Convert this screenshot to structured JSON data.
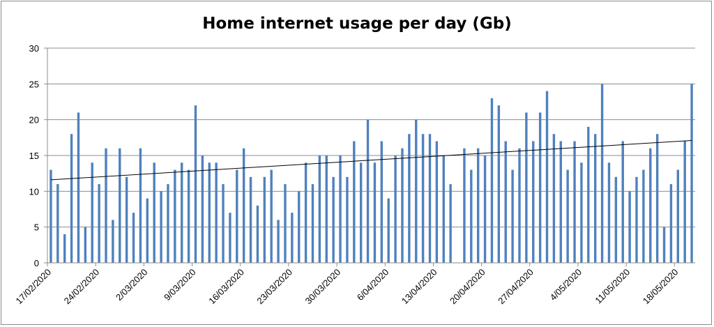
{
  "chart_data": {
    "type": "bar",
    "title": "Home internet usage per day (Gb)",
    "xlabel": "",
    "ylabel": "",
    "ylim": [
      0,
      30
    ],
    "y_ticks": [
      "0",
      "5",
      "10",
      "15",
      "20",
      "25",
      "30"
    ],
    "start_date": "17/02/2020",
    "x_tick_labels": [
      "17/02/2020",
      "24/02/2020",
      "2/03/2020",
      "9/03/2020",
      "16/03/2020",
      "23/03/2020",
      "30/03/2020",
      "6/04/2020",
      "13/04/2020",
      "20/04/2020",
      "27/04/2020",
      "4/05/2020",
      "11/05/2020",
      "18/05/2020"
    ],
    "grid": true,
    "legend": "none",
    "bar_color": "#4f81bd",
    "trendline": {
      "type": "linear",
      "start": 11.6,
      "end": 17.1,
      "color": "#000000"
    },
    "values": [
      13,
      11,
      4,
      18,
      21,
      5,
      14,
      11,
      16,
      6,
      16,
      12,
      7,
      16,
      9,
      14,
      10,
      11,
      13,
      14,
      13,
      22,
      15,
      14,
      14,
      11,
      7,
      13,
      16,
      12,
      8,
      12,
      13,
      6,
      11,
      7,
      10,
      14,
      11,
      15,
      15,
      12,
      15,
      12,
      17,
      14,
      20,
      14,
      17,
      9,
      15,
      16,
      18,
      20,
      18,
      18,
      17,
      15,
      11,
      0,
      16,
      13,
      16,
      15,
      23,
      22,
      17,
      13,
      16,
      21,
      17,
      21,
      24,
      18,
      17,
      13,
      17,
      14,
      19,
      18,
      25,
      14,
      12,
      17,
      10,
      12,
      13,
      16,
      18,
      5,
      11,
      13,
      17,
      25
    ]
  }
}
